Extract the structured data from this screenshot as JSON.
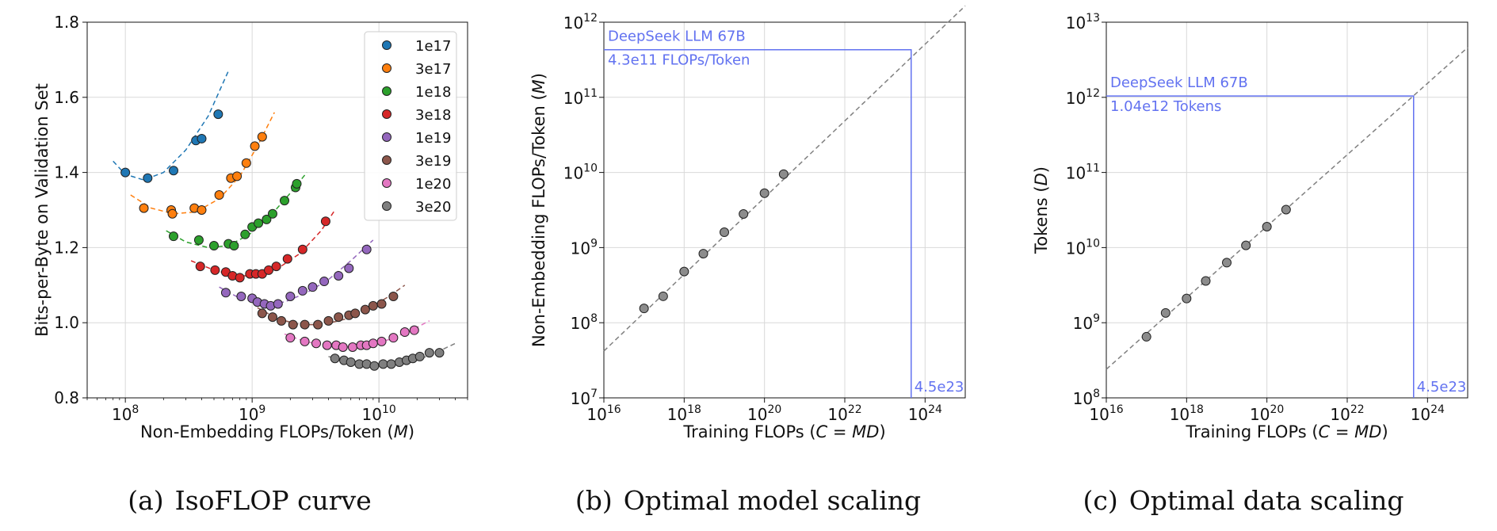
{
  "chart_data": [
    {
      "type": "scatter",
      "xlabel": "Non-Embedding FLOPs/Token (M)",
      "ylabel": "Bits-per-Byte on Validation Set",
      "xscale": "log",
      "xlim": [
        50000000.0,
        50000000000.0
      ],
      "ylim": [
        0.8,
        1.8
      ],
      "yticks": [
        "0.8",
        "1.0",
        "1.2",
        "1.4",
        "1.6",
        "1.8"
      ],
      "xticks": [
        {
          "base": "10",
          "exp": "8"
        },
        {
          "base": "10",
          "exp": "9"
        },
        {
          "base": "10",
          "exp": "10"
        }
      ],
      "grid": true,
      "legend_position": "top-right",
      "series": [
        {
          "name": "1e17",
          "color": "#1f77b4",
          "x": [
            100000000.0,
            150000000.0,
            240000000.0,
            360000000.0,
            400000000.0,
            540000000.0
          ],
          "y": [
            1.4,
            1.385,
            1.405,
            1.485,
            1.49,
            1.555
          ],
          "curve_x": [
            80000000.0,
            100000000.0,
            140000000.0,
            200000000.0,
            300000000.0,
            450000000.0,
            650000000.0
          ],
          "curve_y": [
            1.43,
            1.395,
            1.38,
            1.4,
            1.46,
            1.55,
            1.67
          ]
        },
        {
          "name": "3e17",
          "color": "#ff7f0e",
          "x": [
            140000000.0,
            230000000.0,
            235000000.0,
            350000000.0,
            400000000.0,
            550000000.0,
            680000000.0,
            760000000.0,
            900000000.0,
            1050000000.0,
            1200000000.0
          ],
          "y": [
            1.305,
            1.3,
            1.29,
            1.305,
            1.3,
            1.34,
            1.385,
            1.39,
            1.425,
            1.47,
            1.495
          ],
          "curve_x": [
            110000000.0,
            160000000.0,
            240000000.0,
            360000000.0,
            550000000.0,
            800000000.0,
            1100000000.0,
            1500000000.0
          ],
          "curve_y": [
            1.34,
            1.305,
            1.29,
            1.295,
            1.33,
            1.39,
            1.47,
            1.56
          ]
        },
        {
          "name": "1e18",
          "color": "#2ca02c",
          "x": [
            240000000.0,
            380000000.0,
            500000000.0,
            650000000.0,
            720000000.0,
            880000000.0,
            1000000000.0,
            1120000000.0,
            1300000000.0,
            1450000000.0,
            1800000000.0,
            2200000000.0,
            2250000000.0
          ],
          "y": [
            1.23,
            1.22,
            1.205,
            1.21,
            1.205,
            1.235,
            1.255,
            1.265,
            1.275,
            1.29,
            1.325,
            1.36,
            1.37
          ],
          "curve_x": [
            210000000.0,
            300000000.0,
            450000000.0,
            650000000.0,
            950000000.0,
            1400000000.0,
            2000000000.0,
            2700000000.0
          ],
          "curve_y": [
            1.245,
            1.215,
            1.2,
            1.205,
            1.235,
            1.285,
            1.345,
            1.4
          ]
        },
        {
          "name": "3e18",
          "color": "#d62728",
          "x": [
            390000000.0,
            510000000.0,
            620000000.0,
            700000000.0,
            800000000.0,
            960000000.0,
            1070000000.0,
            1200000000.0,
            1350000000.0,
            1550000000.0,
            1900000000.0,
            2500000000.0,
            3800000000.0
          ],
          "y": [
            1.15,
            1.14,
            1.135,
            1.125,
            1.12,
            1.13,
            1.13,
            1.13,
            1.14,
            1.15,
            1.17,
            1.195,
            1.27
          ],
          "curve_x": [
            330000000.0,
            500000000.0,
            750000000.0,
            1100000000.0,
            1600000000.0,
            2400000000.0,
            3500000000.0,
            4500000000.0
          ],
          "curve_y": [
            1.165,
            1.14,
            1.125,
            1.125,
            1.145,
            1.185,
            1.245,
            1.3
          ]
        },
        {
          "name": "1e19",
          "color": "#9467bd",
          "x": [
            620000000.0,
            820000000.0,
            1000000000.0,
            1100000000.0,
            1250000000.0,
            1400000000.0,
            1600000000.0,
            2000000000.0,
            2500000000.0,
            3000000000.0,
            3700000000.0,
            4800000000.0,
            5800000000.0,
            8000000000.0
          ],
          "y": [
            1.08,
            1.07,
            1.065,
            1.055,
            1.05,
            1.045,
            1.05,
            1.07,
            1.085,
            1.095,
            1.11,
            1.125,
            1.145,
            1.195
          ],
          "curve_x": [
            550000000.0,
            800000000.0,
            1200000000.0,
            1800000000.0,
            2700000000.0,
            4000000000.0,
            6000000000.0,
            9000000000.0
          ],
          "curve_y": [
            1.095,
            1.065,
            1.05,
            1.055,
            1.08,
            1.115,
            1.165,
            1.22
          ]
        },
        {
          "name": "3e19",
          "color": "#8c564b",
          "x": [
            1200000000.0,
            1450000000.0,
            1700000000.0,
            2100000000.0,
            2600000000.0,
            3300000000.0,
            4000000000.0,
            4800000000.0,
            5800000000.0,
            6500000000.0,
            7800000000.0,
            9000000000.0,
            10500000000.0,
            13000000000.0
          ],
          "y": [
            1.025,
            1.015,
            1.005,
            0.995,
            0.995,
            0.995,
            1.005,
            1.015,
            1.02,
            1.025,
            1.035,
            1.045,
            1.05,
            1.07
          ],
          "curve_x": [
            1100000000.0,
            1600000000.0,
            2400000000.0,
            3600000000.0,
            5500000000.0,
            8000000000.0,
            12000000000.0,
            16000000000.0
          ],
          "curve_y": [
            1.04,
            1.01,
            0.995,
            0.995,
            1.01,
            1.035,
            1.07,
            1.1
          ]
        },
        {
          "name": "1e20",
          "color": "#e377c2",
          "x": [
            2000000000.0,
            2600000000.0,
            3200000000.0,
            3900000000.0,
            4600000000.0,
            5200000000.0,
            6200000000.0,
            7200000000.0,
            8000000000.0,
            9000000000.0,
            10500000000.0,
            13000000000.0,
            16000000000.0,
            19000000000.0
          ],
          "y": [
            0.96,
            0.95,
            0.945,
            0.94,
            0.94,
            0.935,
            0.935,
            0.94,
            0.94,
            0.945,
            0.95,
            0.96,
            0.975,
            0.98
          ],
          "curve_x": [
            1800000000.0,
            2600000000.0,
            3800000000.0,
            5500000000.0,
            8000000000.0,
            12000000000.0,
            18000000000.0,
            25000000000.0
          ],
          "curve_y": [
            0.97,
            0.95,
            0.94,
            0.935,
            0.94,
            0.955,
            0.98,
            1.005
          ]
        },
        {
          "name": "3e20",
          "color": "#7f7f7f",
          "x": [
            4500000000.0,
            5300000000.0,
            6000000000.0,
            7000000000.0,
            8000000000.0,
            9200000000.0,
            10800000000.0,
            12500000000.0,
            14500000000.0,
            16500000000.0,
            18500000000.0,
            21000000000.0,
            25000000000.0,
            30000000000.0
          ],
          "y": [
            0.905,
            0.9,
            0.895,
            0.89,
            0.89,
            0.885,
            0.89,
            0.89,
            0.895,
            0.9,
            0.905,
            0.91,
            0.92,
            0.92
          ],
          "curve_x": [
            4000000000.0,
            6000000000.0,
            9000000000.0,
            13000000000.0,
            20000000000.0,
            30000000000.0,
            40000000000.0
          ],
          "curve_y": [
            0.91,
            0.895,
            0.885,
            0.885,
            0.9,
            0.925,
            0.945
          ]
        }
      ]
    },
    {
      "type": "scatter",
      "xlabel": "Training FLOPs (C = MD)",
      "ylabel": "Non-Embedding FLOPs/Token (M)",
      "xscale": "log",
      "yscale": "log",
      "xlim": [
        1e+16,
        1e+25
      ],
      "ylim": [
        10000000.0,
        1000000000000.0
      ],
      "xticks": [
        {
          "base": "10",
          "exp": "16"
        },
        {
          "base": "10",
          "exp": "18"
        },
        {
          "base": "10",
          "exp": "20"
        },
        {
          "base": "10",
          "exp": "22"
        },
        {
          "base": "10",
          "exp": "24"
        }
      ],
      "yticks": [
        {
          "base": "10",
          "exp": "7"
        },
        {
          "base": "10",
          "exp": "8"
        },
        {
          "base": "10",
          "exp": "9"
        },
        {
          "base": "10",
          "exp": "10"
        },
        {
          "base": "10",
          "exp": "11"
        },
        {
          "base": "10",
          "exp": "12"
        }
      ],
      "grid": true,
      "x": [
        1e+17,
        3e+17,
        1e+18,
        3e+18,
        1e+19,
        3e+19,
        1e+20,
        3e+20
      ],
      "y": [
        155000000.0,
        225000000.0,
        480000000.0,
        830000000.0,
        1600000000.0,
        2800000000.0,
        5300000000.0,
        9500000000.0
      ],
      "fit_line": {
        "x": [
          1e+16,
          1e+25
        ],
        "y": [
          42000000.0,
          1650000000000.0
        ]
      },
      "annotation": {
        "point_x": 4.5e+23,
        "point_y": 430000000000.0,
        "line1": "DeepSeek LLM 67B",
        "line2": "4.3e11 FLOPs/Token",
        "x_label": "4.5e23",
        "color": "#6272f0"
      }
    },
    {
      "type": "scatter",
      "xlabel": "Training FLOPs (C = MD)",
      "ylabel": "Tokens (D)",
      "xscale": "log",
      "yscale": "log",
      "xlim": [
        1e+16,
        1e+25
      ],
      "ylim": [
        100000000.0,
        10000000000000.0
      ],
      "xticks": [
        {
          "base": "10",
          "exp": "16"
        },
        {
          "base": "10",
          "exp": "18"
        },
        {
          "base": "10",
          "exp": "20"
        },
        {
          "base": "10",
          "exp": "22"
        },
        {
          "base": "10",
          "exp": "24"
        }
      ],
      "yticks": [
        {
          "base": "10",
          "exp": "8"
        },
        {
          "base": "10",
          "exp": "9"
        },
        {
          "base": "10",
          "exp": "10"
        },
        {
          "base": "10",
          "exp": "11"
        },
        {
          "base": "10",
          "exp": "12"
        },
        {
          "base": "10",
          "exp": "13"
        }
      ],
      "grid": true,
      "x": [
        1e+17,
        3e+17,
        1e+18,
        3e+18,
        1e+19,
        3e+19,
        1e+20,
        3e+20
      ],
      "y": [
        650000000.0,
        1350000000.0,
        2100000000.0,
        3600000000.0,
        6300000000.0,
        10700000000.0,
        19000000000.0,
        32000000000.0
      ],
      "fit_line": {
        "x": [
          1e+16,
          1e+25
        ],
        "y": [
          240000000.0,
          4600000000000.0
        ]
      },
      "annotation": {
        "point_x": 4.5e+23,
        "point_y": 1040000000000.0,
        "line1": "DeepSeek LLM 67B",
        "line2": "1.04e12 Tokens",
        "x_label": "4.5e23",
        "color": "#6272f0"
      }
    }
  ],
  "captions": [
    {
      "tag": "(a)",
      "text": "IsoFLOP curve"
    },
    {
      "tag": "(b)",
      "text": "Optimal model scaling"
    },
    {
      "tag": "(c)",
      "text": "Optimal data scaling"
    }
  ]
}
